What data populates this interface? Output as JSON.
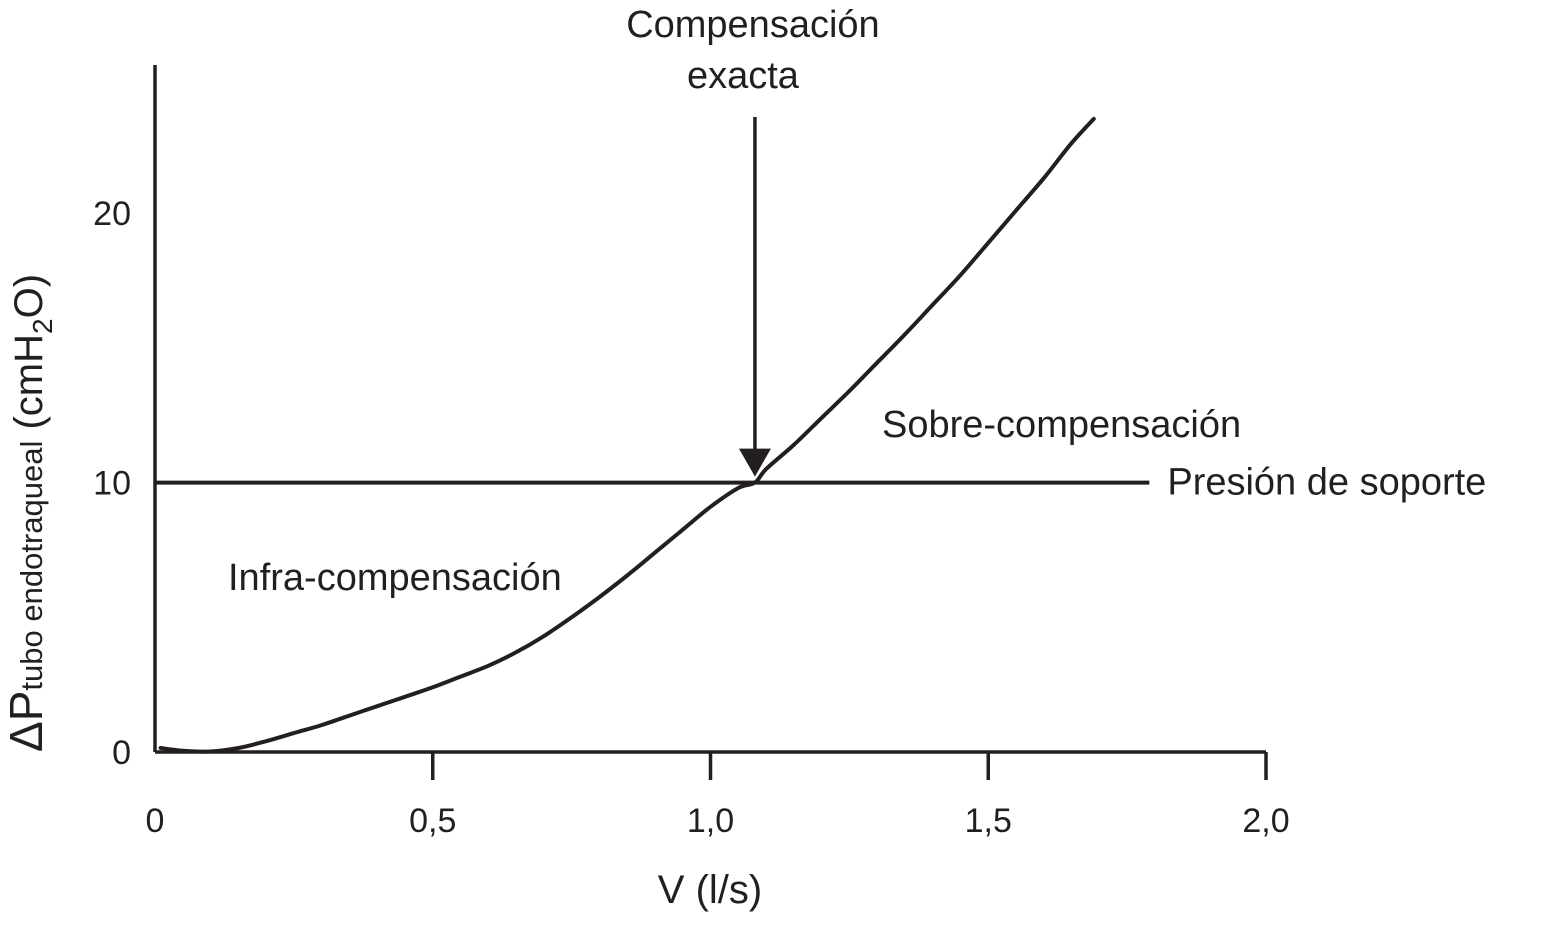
{
  "chart_data": {
    "type": "line",
    "xlabel": "V (l/s)",
    "ylabel": {
      "prefix": "ΔP",
      "subscript": "tubo endotraqueal",
      "unit_open": " (cmH",
      "unit_sub": "2",
      "unit_close": "O)"
    },
    "xlim": [
      0,
      2.0
    ],
    "ylim": [
      0,
      25.5
    ],
    "x_ticks": [
      {
        "value": 0,
        "label": "0"
      },
      {
        "value": 0.5,
        "label": "0,5"
      },
      {
        "value": 1.0,
        "label": "1,0"
      },
      {
        "value": 1.5,
        "label": "1,5"
      },
      {
        "value": 2.0,
        "label": "2,0"
      }
    ],
    "y_ticks": [
      {
        "value": 0,
        "label": "0"
      },
      {
        "value": 10,
        "label": "10"
      },
      {
        "value": 20,
        "label": "20"
      }
    ],
    "grid": false,
    "series": [
      {
        "x": [
          0.01,
          0.05,
          0.1,
          0.15,
          0.2,
          0.25,
          0.3,
          0.35,
          0.4,
          0.45,
          0.5,
          0.55,
          0.6,
          0.65,
          0.7,
          0.75,
          0.8,
          0.85,
          0.9,
          0.95,
          1.0,
          1.05,
          1.08,
          1.1,
          1.15,
          1.2,
          1.25,
          1.3,
          1.35,
          1.4,
          1.45,
          1.5,
          1.55,
          1.6,
          1.65,
          1.69
        ],
        "y": [
          0.15,
          0.05,
          0.02,
          0.15,
          0.4,
          0.7,
          1.0,
          1.35,
          1.7,
          2.05,
          2.4,
          2.8,
          3.2,
          3.7,
          4.3,
          5.0,
          5.75,
          6.55,
          7.4,
          8.25,
          9.1,
          9.8,
          10.0,
          10.5,
          11.4,
          12.4,
          13.4,
          14.45,
          15.5,
          16.6,
          17.7,
          18.9,
          20.1,
          21.3,
          22.6,
          23.5
        ]
      }
    ],
    "reference_line": {
      "y": 10,
      "x_start": 0,
      "x_end": 1.79,
      "label": "Presión de soporte"
    },
    "annotations": {
      "exact_line1": "Compensación",
      "exact_line2": "exacta",
      "exact_x": 1.08,
      "exact_y": 10,
      "over": "Sobre-compensación",
      "under": "Infra-compensación"
    }
  }
}
